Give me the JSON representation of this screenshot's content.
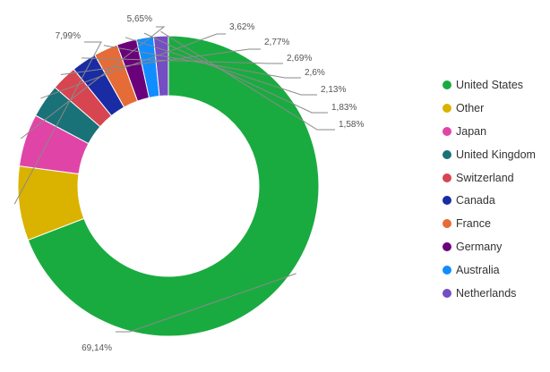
{
  "chart_data": {
    "type": "pie",
    "variant": "donut",
    "title": "",
    "legend_position": "right",
    "slices": [
      {
        "name": "United States",
        "value": 69.14,
        "label": "69,14%",
        "color": "#1AAB40"
      },
      {
        "name": "Other",
        "value": 7.99,
        "label": "7,99%",
        "color": "#D9B300"
      },
      {
        "name": "Japan",
        "value": 5.65,
        "label": "5,65%",
        "color": "#E044A7"
      },
      {
        "name": "United Kingdom",
        "value": 3.62,
        "label": "3,62%",
        "color": "#197278"
      },
      {
        "name": "Switzerland",
        "value": 2.77,
        "label": "2,77%",
        "color": "#D64550"
      },
      {
        "name": "Canada",
        "value": 2.69,
        "label": "2,69%",
        "color": "#1A2CA3"
      },
      {
        "name": "France",
        "value": 2.6,
        "label": "2,6%",
        "color": "#E66C37"
      },
      {
        "name": "Germany",
        "value": 2.13,
        "label": "2,13%",
        "color": "#6B007B"
      },
      {
        "name": "Australia",
        "value": 1.83,
        "label": "1,83%",
        "color": "#118DFF"
      },
      {
        "name": "Netherlands",
        "value": 1.58,
        "label": "1,58%",
        "color": "#744EC2"
      }
    ]
  }
}
